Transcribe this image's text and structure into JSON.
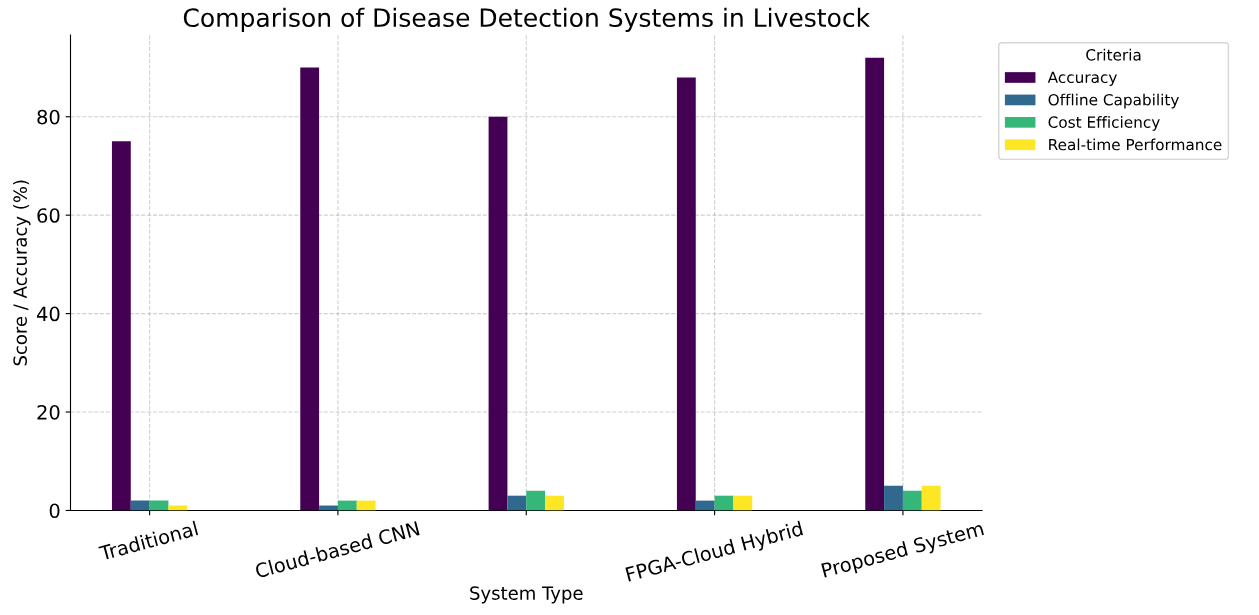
{
  "chart_data": {
    "type": "bar",
    "title": "Comparison of Disease Detection Systems in Livestock",
    "xlabel": "System Type",
    "ylabel": "Score / Accuracy (%)",
    "legend_title": "Criteria",
    "categories": [
      "Traditional",
      "Cloud-based CNN",
      null,
      "FPGA-Cloud Hybrid",
      "Proposed System"
    ],
    "series": [
      {
        "name": "Accuracy",
        "color": "#440154",
        "values": [
          75,
          90,
          80,
          88,
          92
        ]
      },
      {
        "name": "Offline Capability",
        "color": "#31688e",
        "values": [
          2,
          1,
          3,
          2,
          5
        ]
      },
      {
        "name": "Cost Efficiency",
        "color": "#35b779",
        "values": [
          2,
          2,
          4,
          3,
          4
        ]
      },
      {
        "name": "Real-time Performance",
        "color": "#fde725",
        "values": [
          1,
          2,
          3,
          3,
          5
        ]
      }
    ],
    "ylim": [
      0,
      96.6
    ],
    "yticks": [
      0,
      20,
      40,
      60,
      80
    ],
    "grid": true,
    "legend": "top right"
  }
}
